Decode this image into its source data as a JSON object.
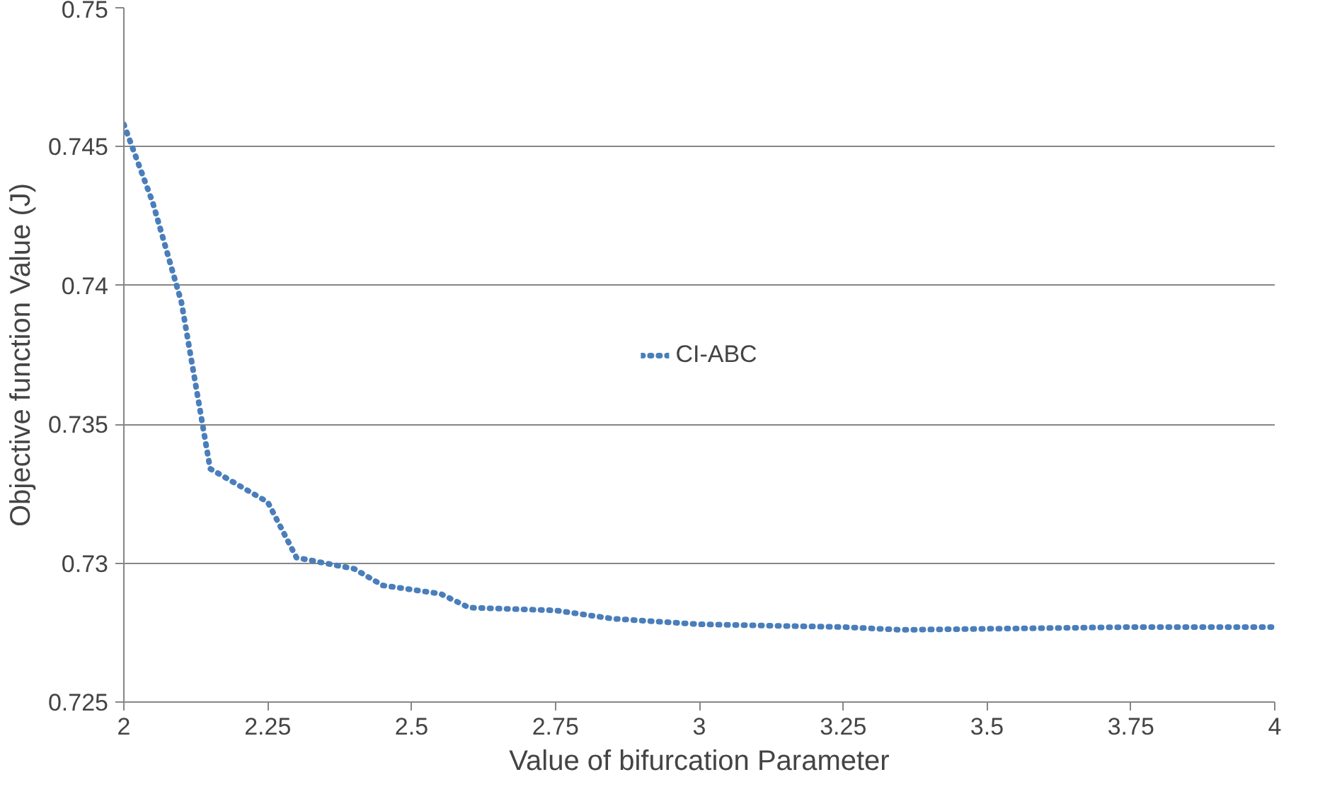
{
  "chart_data": {
    "type": "line",
    "xlabel": "Value of bifurcation Parameter",
    "ylabel": "Objective function Value (J)",
    "xlim": [
      2,
      4
    ],
    "xticks": [
      2,
      {
        "value": 2.25,
        "label": "2.25"
      },
      {
        "value": 2.5,
        "label": "2.5"
      },
      {
        "value": 2.75,
        "label": "2.75"
      },
      3,
      {
        "value": 3.25,
        "label": "3.25"
      },
      {
        "value": 3.5,
        "label": "3.5"
      },
      {
        "value": 3.75,
        "label": "3.75"
      },
      4
    ],
    "ylim": [
      0.725,
      0.75
    ],
    "yticks": [
      0.725,
      0.73,
      0.735,
      0.74,
      0.745,
      0.75
    ],
    "grid": "y",
    "legend": "center",
    "line_style": "dotted",
    "marker": "none",
    "series": [
      {
        "name": "CI-ABC",
        "color": "#4a7ebb",
        "x": [
          2.0,
          2.05,
          2.1,
          2.13,
          2.15,
          2.2,
          2.25,
          2.3,
          2.4,
          2.45,
          2.55,
          2.6,
          2.75,
          2.85,
          3.0,
          3.25,
          3.35,
          3.75,
          4.0
        ],
        "values": [
          0.7458,
          0.743,
          0.7394,
          0.7358,
          0.7334,
          0.7328,
          0.7322,
          0.7302,
          0.7298,
          0.7292,
          0.7289,
          0.7284,
          0.7283,
          0.728,
          0.7278,
          0.7277,
          0.7276,
          0.7277,
          0.7277
        ]
      }
    ]
  }
}
